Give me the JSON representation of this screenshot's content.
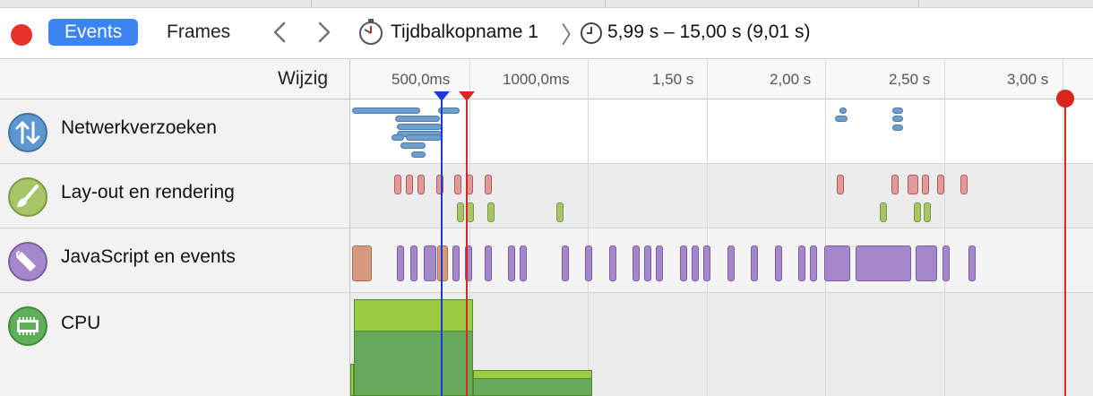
{
  "toolbar": {
    "events_label": "Events",
    "frames_label": "Frames",
    "recording_name": "Tijdbalkopname 1",
    "time_range": "5,99 s – 15,00 s (9,01 s)",
    "record_color": "#e8322b",
    "accent": "#3a85f2"
  },
  "sidebar": {
    "header": "Wijzig",
    "tracks": [
      {
        "label": "Netwerkverzoeken",
        "icon": "network-arrows-icon",
        "color": "#5e97d0"
      },
      {
        "label": "Lay-out en rendering",
        "icon": "paintbrush-icon",
        "color": "#9fbf5b"
      },
      {
        "label": "JavaScript en events",
        "icon": "script-scroll-icon",
        "color": "#a687cc"
      },
      {
        "label": "CPU",
        "icon": "cpu-chip-icon",
        "color": "#5fae5a"
      }
    ]
  },
  "ruler": {
    "ticks": [
      "500,0ms",
      "1000,0ms",
      "1,50 s",
      "2,00 s",
      "2,50 s",
      "3,00 s"
    ]
  },
  "markers": {
    "selection_start_color": "#1a3bd6",
    "selection_end_color": "#d9271e"
  }
}
